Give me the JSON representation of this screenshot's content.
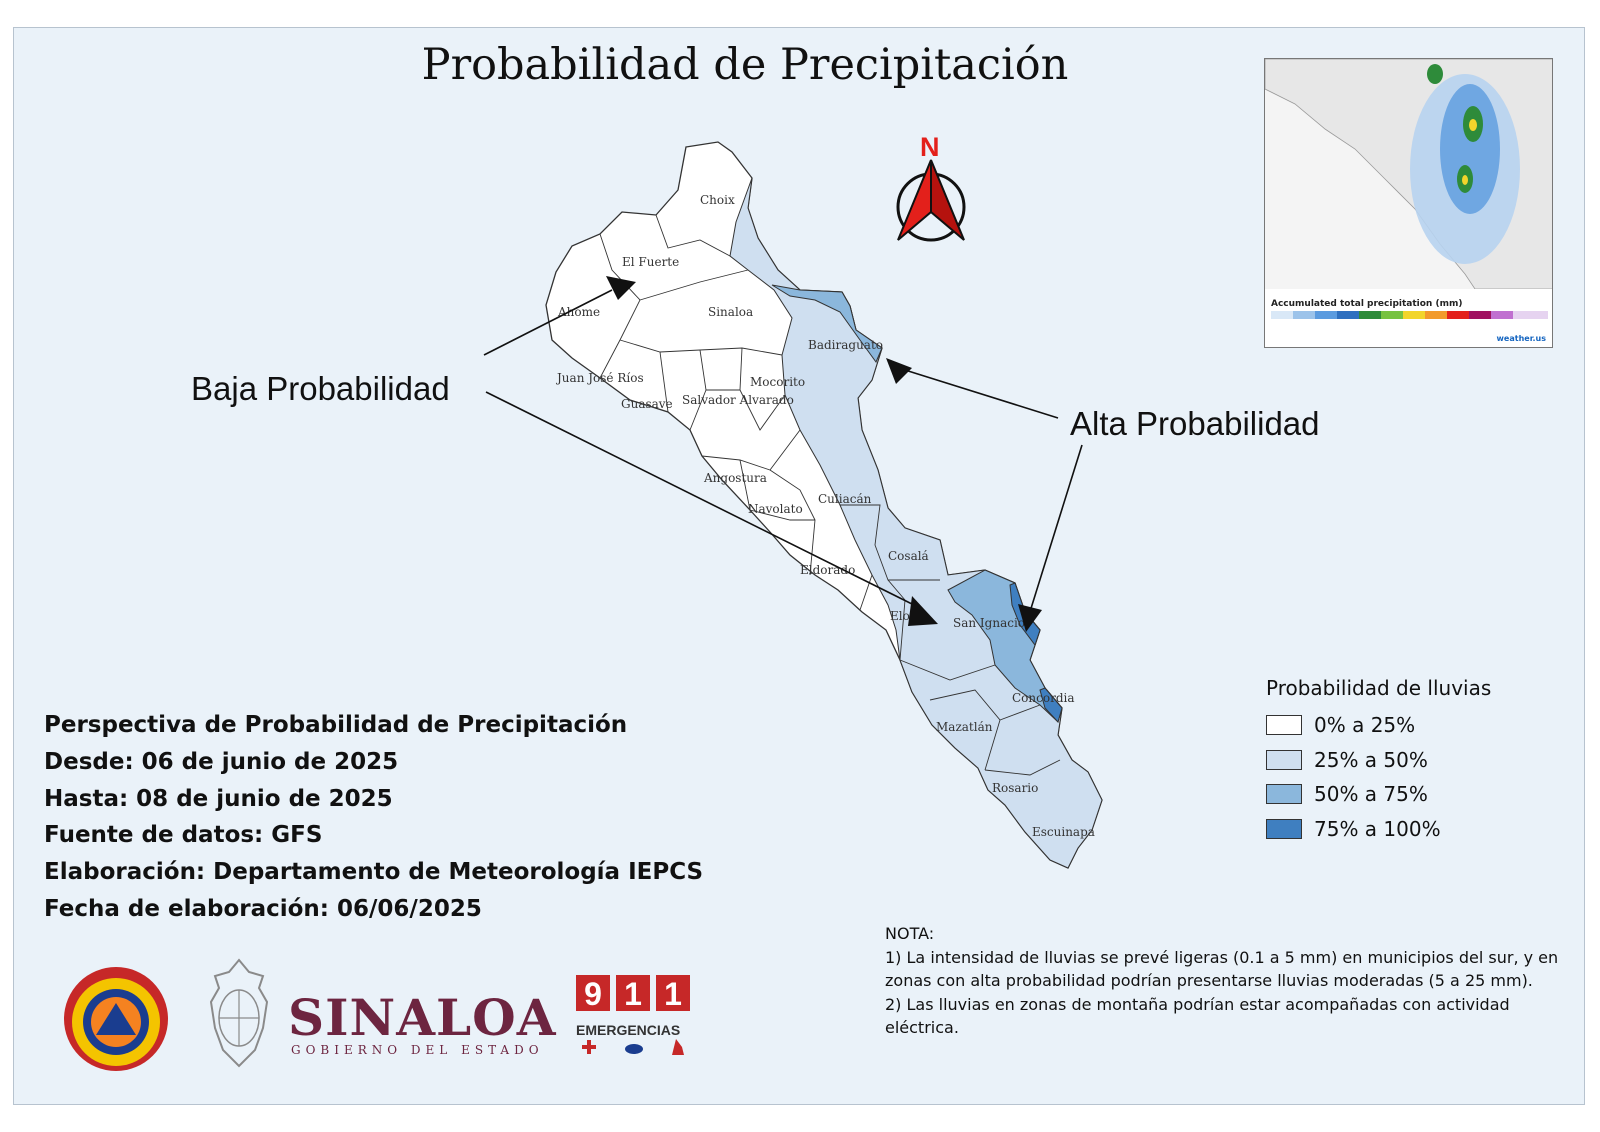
{
  "title": "Probabilidad de Precipitación",
  "annotations": {
    "low": "Baja Probabilidad",
    "high": "Alta Probabilidad"
  },
  "compass": {
    "label": "N",
    "icon": "north-arrow-icon"
  },
  "municipalities": [
    "Choix",
    "El Fuerte",
    "Ahome",
    "Sinaloa",
    "Badiraguato",
    "Juan José Ríos",
    "Guasave",
    "Mocorito",
    "Salvador Alvarado",
    "Angostura",
    "Navolato",
    "Culiacán",
    "Cosalá",
    "Eldorado",
    "Elota",
    "San Ignacio",
    "Concordia",
    "Mazatlán",
    "Rosario",
    "Escuinapa"
  ],
  "info": {
    "line1": "Perspectiva de Probabilidad de Precipitación",
    "line2": "Desde: 06 de junio de 2025",
    "line3": "Hasta: 08 de junio de 2025",
    "line4": "Fuente de datos: GFS",
    "line5": "Elaboración: Departamento de Meteorología IEPCS",
    "line6": "Fecha de elaboración: 06/06/2025"
  },
  "legend": {
    "title": "Probabilidad de lluvias",
    "items": [
      {
        "label": "0% a 25%",
        "color": "#ffffff"
      },
      {
        "label": "25% a 50%",
        "color": "#cfdff0"
      },
      {
        "label": "50% a 75%",
        "color": "#8bb7dc"
      },
      {
        "label": "75% a 100%",
        "color": "#3f7fc0"
      }
    ]
  },
  "note": {
    "heading": "NOTA:",
    "p1": "1) La intensidad de lluvias se prevé ligeras (0.1 a 5 mm) en municipios del sur, y en zonas con alta probabilidad podrían presentarse lluvias moderadas (5 a 25 mm).",
    "p2": "2) Las lluvias en zonas de montaña podrían estar acompañadas con actividad eléctrica."
  },
  "inset": {
    "title": "Accumulated total precipitation (mm)",
    "brand": "weather.us"
  },
  "logos": {
    "state_name": "SINALOA",
    "state_sub": "GOBIERNO DEL ESTADO",
    "emergency_digits": [
      "9",
      "1",
      "1"
    ],
    "emergency_label": "EMERGENCIAS",
    "pc_icon": "proteccion-civil-logo-icon",
    "seal_icon": "state-seal-icon"
  }
}
